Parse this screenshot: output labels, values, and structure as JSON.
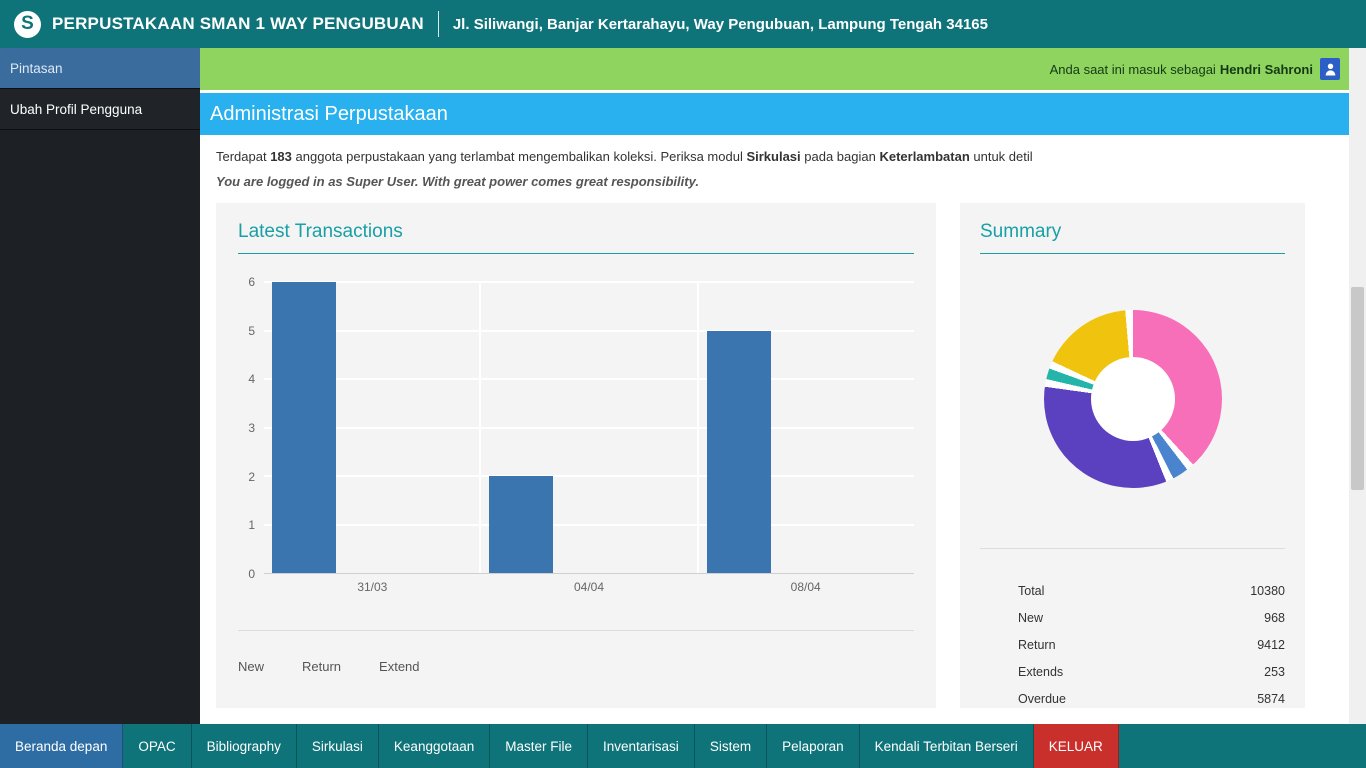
{
  "theme": {
    "teal_header": "#0e747a",
    "green_bar": "#8fd45f",
    "blue_bar": "#29b0ef",
    "sidebar_active": "#3a6c9d",
    "nav_active": "#2e6da4",
    "nav_danger": "#c9302c",
    "panel_bg": "#f4f4f4",
    "accent_teal": "#18a0a6"
  },
  "header": {
    "logo": "S",
    "title": "PERPUSTAKAAN SMAN 1 WAY PENGUBUAN",
    "address": "Jl. Siliwangi, Banjar Kertarahayu, Way Pengubuan, Lampung Tengah 34165"
  },
  "sidebar": {
    "items": [
      {
        "label": "Pintasan",
        "active": true
      },
      {
        "label": "Ubah Profil Pengguna",
        "active": false
      }
    ]
  },
  "userbar": {
    "prefix": "Anda saat ini masuk sebagai ",
    "username": "Hendri Sahroni"
  },
  "page": {
    "title": "Administrasi Perpustakaan",
    "notice_parts": [
      {
        "text": "Terdapat ",
        "bold": false
      },
      {
        "text": "183",
        "bold": true
      },
      {
        "text": " anggota perpustakaan yang terlambat mengembalikan koleksi. Periksa modul ",
        "bold": false
      },
      {
        "text": "Sirkulasi",
        "bold": true
      },
      {
        "text": " pada bagian ",
        "bold": false
      },
      {
        "text": "Keterlambatan",
        "bold": true
      },
      {
        "text": " untuk detil",
        "bold": false
      }
    ],
    "quote": "You are logged in as Super User. With great power comes great responsibility."
  },
  "chart_data": [
    {
      "type": "bar",
      "title": "Latest Transactions",
      "categories": [
        "31/03",
        "04/04",
        "08/04"
      ],
      "series": [
        {
          "name": "New",
          "values": [
            6,
            2,
            5
          ]
        }
      ],
      "legend": [
        "New",
        "Return",
        "Extend"
      ],
      "ylim": [
        0,
        6
      ],
      "yticks": [
        0,
        1,
        2,
        3,
        4,
        5,
        6
      ],
      "bar_color": "#3a75b0",
      "grid": true,
      "legend_position": "bottom"
    },
    {
      "type": "donut",
      "title": "Summary",
      "slices": [
        {
          "color": "#f76fb8",
          "percent": 39
        },
        {
          "color": "#4a84cf",
          "percent": 3
        },
        {
          "color": "#5b40c0",
          "percent": 34
        },
        {
          "color": "#23b5a9",
          "percent": 2
        },
        {
          "color": "#f0c30f",
          "percent": 17
        }
      ],
      "table": [
        {
          "label": "Total",
          "value": "10380"
        },
        {
          "label": "New",
          "value": "968"
        },
        {
          "label": "Return",
          "value": "9412"
        },
        {
          "label": "Extends",
          "value": "253"
        },
        {
          "label": "Overdue",
          "value": "5874"
        }
      ]
    }
  ],
  "nav": {
    "items": [
      {
        "label": "Beranda depan",
        "state": "active"
      },
      {
        "label": "OPAC"
      },
      {
        "label": "Bibliography"
      },
      {
        "label": "Sirkulasi"
      },
      {
        "label": "Keanggotaan"
      },
      {
        "label": "Master File"
      },
      {
        "label": "Inventarisasi"
      },
      {
        "label": "Sistem"
      },
      {
        "label": "Pelaporan"
      },
      {
        "label": "Kendali Terbitan Berseri"
      },
      {
        "label": "KELUAR",
        "state": "danger"
      }
    ]
  }
}
